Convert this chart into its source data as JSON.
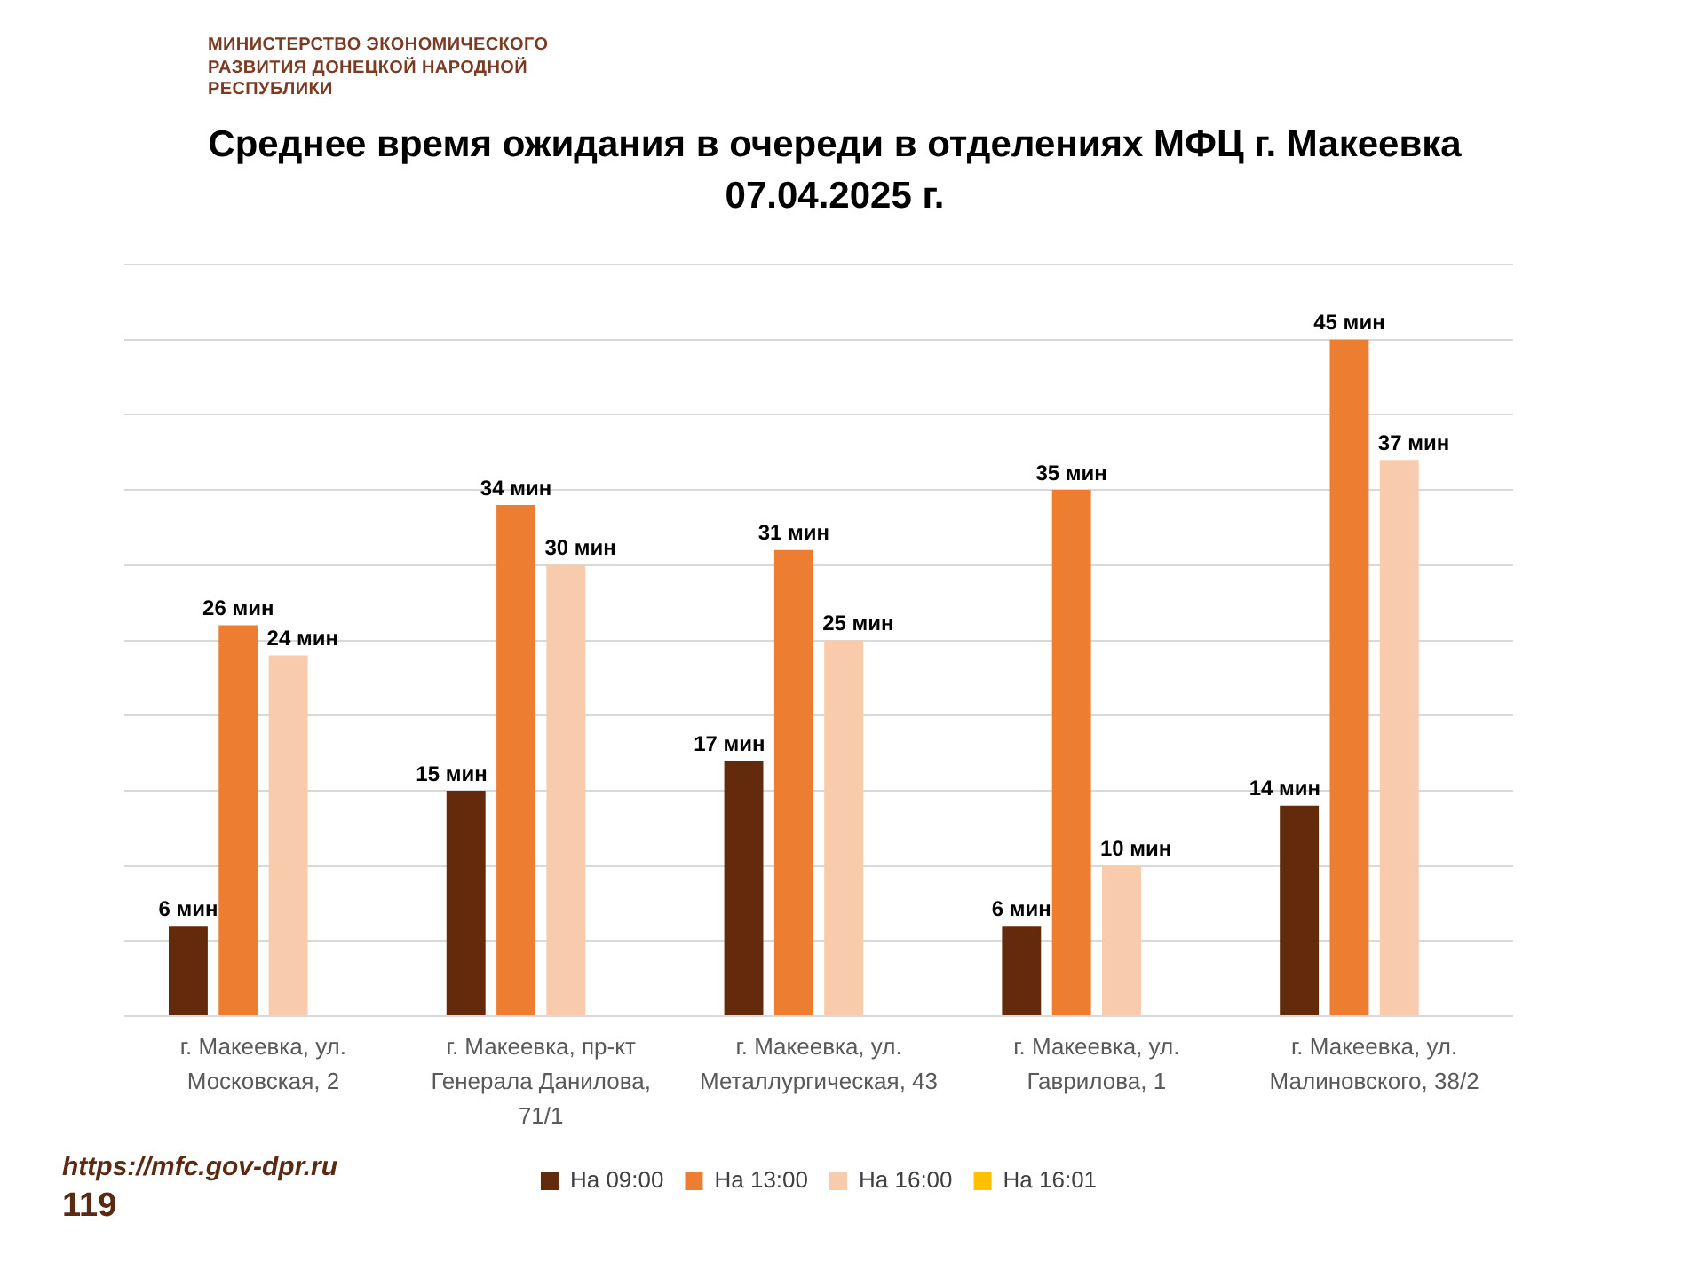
{
  "chart_data": {
    "type": "bar",
    "title": "Среднее время ожидания в очереди в отделениях МФЦ г. Макеевка 07.04.2025 г.",
    "categories": [
      "г. Макеевка, ул. Московская, 2",
      "г. Макеевка, пр-кт Генерала Данилова, 71/1",
      "г. Макеевка, ул. Металлургическая, 43",
      "г. Макеевка, ул. Гаврилова, 1",
      "г. Макеевка, ул. Малиновского, 38/2"
    ],
    "series": [
      {
        "name": "На 09:00",
        "color": "#632b0c",
        "values": [
          6,
          15,
          17,
          6,
          14
        ],
        "value_labels": [
          "6 мин",
          "15 мин",
          "17 мин",
          "6 мин",
          "14 мин"
        ]
      },
      {
        "name": "На 13:00",
        "color": "#ed7d31",
        "values": [
          26,
          34,
          31,
          35,
          45
        ],
        "value_labels": [
          "26 мин",
          "34 мин",
          "31 мин",
          "35 мин",
          "45 мин"
        ]
      },
      {
        "name": "На 16:00",
        "color": "#f8cbad",
        "values": [
          24,
          30,
          25,
          10,
          37
        ],
        "value_labels": [
          "24 мин",
          "30 мин",
          "25 мин",
          "10 мин",
          "37 мин"
        ]
      },
      {
        "name": "На 16:01",
        "color": "#ffc000",
        "values": [
          null,
          null,
          null,
          null,
          null
        ]
      }
    ],
    "ylim": [
      0,
      50
    ],
    "yticks": [
      {
        "value": 0,
        "label": null
      },
      {
        "value": 5,
        "label": null
      },
      {
        "value": 10,
        "label": null
      },
      {
        "value": 15,
        "label": null
      },
      {
        "value": 20,
        "label": null
      },
      {
        "value": 25,
        "label": null
      },
      {
        "value": 30,
        "label": null
      },
      {
        "value": 35,
        "label": null
      },
      {
        "value": 40,
        "label": null
      },
      {
        "value": 45,
        "label": null
      },
      {
        "value": 50,
        "label": null
      }
    ],
    "grid": "y",
    "tick_labels": "x",
    "legend": "bottom",
    "annotations": [
      "МИНИСТЕРСТВО ЭКОНОМИЧЕСКОГО РАЗВИТИЯ ДОНЕЦКОЙ НАРОДНОЙ РЕСПУБЛИКИ",
      "https://mfc.gov-dpr.ru",
      "119"
    ]
  }
}
